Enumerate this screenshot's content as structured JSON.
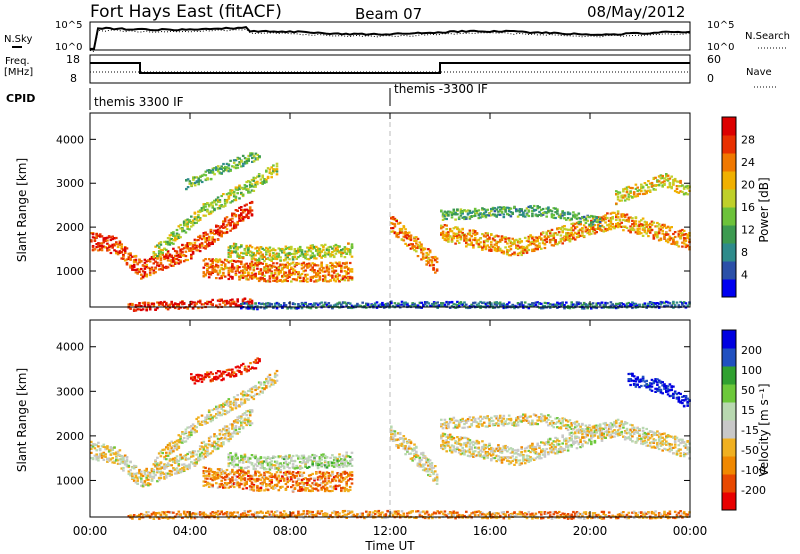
{
  "header": {
    "station": "Fort Hays East (fitACF)",
    "beam": "Beam 07",
    "date": "08/May/2012"
  },
  "noise_panel": {
    "left_label": "N.Sky",
    "left_ticks": [
      "10^5",
      "10^0"
    ],
    "right_label": "N.Search",
    "right_ticks": [
      "10^5",
      "10^0"
    ]
  },
  "freq_panel": {
    "left_label_line1": "Freq.",
    "left_label_line2": "[MHz]",
    "left_ticks": [
      "18",
      "8"
    ],
    "right_label": "Nave",
    "right_ticks": [
      "60",
      "0"
    ]
  },
  "cpid": {
    "label": "CPID",
    "segments": [
      "themis 3300 IF",
      "themis -3300 IF"
    ]
  },
  "chart_data": [
    {
      "type": "heatmap",
      "title": "",
      "xlabel": "",
      "ylabel": "Slant Range [km]",
      "ylim": [
        180,
        4600
      ],
      "yticks": [
        "4000",
        "3000",
        "2000",
        "1000"
      ],
      "colorbar_label": "Power [dB]",
      "colorbar_ticks": [
        "28",
        "24",
        "20",
        "16",
        "12",
        "8",
        "4"
      ],
      "colors": [
        "#0000f0",
        "#2b50a8",
        "#2e8b8b",
        "#3c9a50",
        "#6cc23a",
        "#bfd02a",
        "#f0b000",
        "#f07800",
        "#e83000",
        "#dc0000"
      ],
      "bands": [
        {
          "x": [
            0.0,
            1.0,
            2.0,
            4.0,
            6.5
          ],
          "y": [
            1700,
            1600,
            1050,
            1500,
            2500
          ],
          "w": 200,
          "level": 0.85
        },
        {
          "x": [
            2.5,
            4.5,
            6.5,
            7.5
          ],
          "y": [
            1400,
            2400,
            3000,
            3400
          ],
          "w": 150,
          "level": 0.5
        },
        {
          "x": [
            3.8,
            5.5,
            6.8
          ],
          "y": [
            3000,
            3400,
            3700
          ],
          "w": 120,
          "level": 0.4
        },
        {
          "x": [
            4.5,
            7.0,
            10.5
          ],
          "y": [
            1100,
            1000,
            1000
          ],
          "w": 220,
          "level": 0.75
        },
        {
          "x": [
            5.5,
            7.0,
            10.5
          ],
          "y": [
            1500,
            1400,
            1500
          ],
          "w": 160,
          "level": 0.55
        },
        {
          "x": [
            12.0,
            13.0,
            13.9
          ],
          "y": [
            2100,
            1600,
            1100
          ],
          "w": 200,
          "level": 0.75
        },
        {
          "x": [
            14.0,
            17.0,
            21.0,
            24.0
          ],
          "y": [
            1900,
            1550,
            2200,
            1700
          ],
          "w": 200,
          "level": 0.7
        },
        {
          "x": [
            14.0,
            18.0,
            20.5
          ],
          "y": [
            2300,
            2400,
            2100
          ],
          "w": 120,
          "level": 0.35
        },
        {
          "x": [
            21.0,
            23.0,
            24.0
          ],
          "y": [
            2700,
            3100,
            2800
          ],
          "w": 150,
          "level": 0.6
        },
        {
          "x": [
            1.5,
            4.0,
            6.5
          ],
          "y": [
            200,
            260,
            320
          ],
          "w": 90,
          "level": 0.9
        },
        {
          "x": [
            6.0,
            12.0,
            20.0,
            24.0
          ],
          "y": [
            220,
            260,
            240,
            260
          ],
          "w": 70,
          "level": 0.2
        }
      ]
    },
    {
      "type": "heatmap",
      "title": "",
      "xlabel": "Time UT",
      "ylabel": "Slant Range [km]",
      "ylim": [
        180,
        4600
      ],
      "yticks": [
        "4000",
        "3000",
        "2000",
        "1000"
      ],
      "xlim": [
        0,
        24
      ],
      "xticks": [
        "00:00",
        "04:00",
        "08:00",
        "12:00",
        "16:00",
        "20:00",
        "00:00"
      ],
      "colorbar_label": "Velocity [m s⁻¹]",
      "colorbar_ticks": [
        "200",
        "100",
        "50",
        "15",
        "-15",
        "-50",
        "-100",
        "-200"
      ],
      "colors": [
        "#e80000",
        "#e84800",
        "#f08800",
        "#f0b020",
        "#c8c8c8",
        "#b8d8b0",
        "#6cc83a",
        "#30a030",
        "#2050c0",
        "#0000e0"
      ],
      "bands": [
        {
          "x": [
            0.0,
            1.0,
            2.0,
            4.0,
            6.5
          ],
          "y": [
            1700,
            1600,
            1050,
            1500,
            2500
          ],
          "w": 200,
          "level": 0.45
        },
        {
          "x": [
            2.5,
            4.5,
            6.5,
            7.5
          ],
          "y": [
            1400,
            2400,
            3000,
            3400
          ],
          "w": 150,
          "level": 0.45
        },
        {
          "x": [
            4.0,
            5.5,
            6.8
          ],
          "y": [
            3300,
            3400,
            3700
          ],
          "w": 110,
          "level": 0.05
        },
        {
          "x": [
            4.5,
            7.0,
            10.5
          ],
          "y": [
            1100,
            1000,
            1000
          ],
          "w": 220,
          "level": 0.25
        },
        {
          "x": [
            5.5,
            7.0,
            10.5
          ],
          "y": [
            1500,
            1400,
            1500
          ],
          "w": 160,
          "level": 0.55
        },
        {
          "x": [
            12.0,
            13.0,
            13.9
          ],
          "y": [
            2100,
            1600,
            1100
          ],
          "w": 200,
          "level": 0.45
        },
        {
          "x": [
            14.0,
            17.0,
            21.0,
            24.0
          ],
          "y": [
            1900,
            1550,
            2200,
            1700
          ],
          "w": 200,
          "level": 0.45
        },
        {
          "x": [
            14.0,
            18.0,
            20.5
          ],
          "y": [
            2300,
            2400,
            2100
          ],
          "w": 120,
          "level": 0.45
        },
        {
          "x": [
            21.5,
            23.0,
            24.0
          ],
          "y": [
            3300,
            3100,
            2700
          ],
          "w": 150,
          "level": 0.97
        },
        {
          "x": [
            1.5,
            6.0,
            12.0,
            20.0,
            24.0
          ],
          "y": [
            230,
            260,
            260,
            240,
            260
          ],
          "w": 80,
          "level": 0.28
        }
      ]
    }
  ]
}
